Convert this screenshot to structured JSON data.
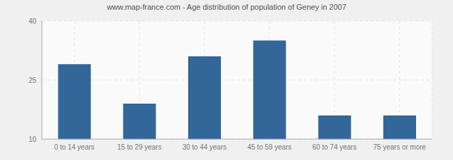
{
  "chart_data": {
    "type": "bar",
    "title": "www.map-france.com - Age distribution of population of Geney in 2007",
    "categories": [
      "0 to 14 years",
      "15 to 29 years",
      "30 to 44 years",
      "45 to 59 years",
      "60 to 74 years",
      "75 years or more"
    ],
    "values": [
      29,
      19,
      31,
      35,
      16,
      16
    ],
    "color": "#336699",
    "ylim": [
      10,
      40
    ],
    "yticks": [
      10,
      25,
      40
    ],
    "grid": true
  }
}
